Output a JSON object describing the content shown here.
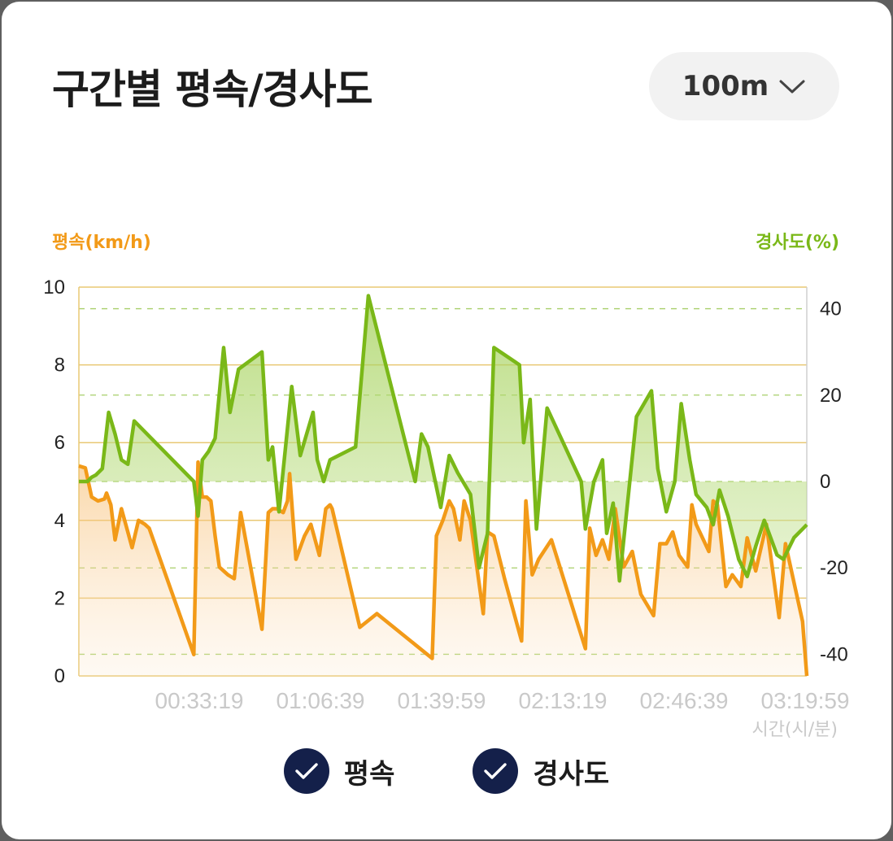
{
  "header": {
    "title": "구간별 평속/경사도"
  },
  "interval_select": {
    "value": "100m",
    "icon": "chevron-down-icon"
  },
  "colors": {
    "speed": "#f29a18",
    "gradient": "#7ab818",
    "grid": "#e8c874",
    "tick_text": "#222222",
    "x_tick_text": "#c9c9c9",
    "legend_check": "#14204a"
  },
  "legend": {
    "speed_label": "평속",
    "gradient_label": "경사도",
    "speed_checked": true,
    "gradient_checked": true
  },
  "chart_data": {
    "type": "line",
    "title": "구간별 평속/경사도",
    "xlabel": "시간(시/분)",
    "ylabel": "평속(km/h)",
    "y2label": "경사도(%)",
    "ylim": [
      0,
      10
    ],
    "y2lim": [
      -45,
      45
    ],
    "yticks": [
      "0",
      "2",
      "4",
      "6",
      "8",
      "10"
    ],
    "y2ticks": [
      "-40",
      "-20",
      "0",
      "20",
      "40"
    ],
    "xticks": [
      "00:33:19",
      "01:06:39",
      "01:39:59",
      "02:13:19",
      "02:46:39",
      "03:19:59"
    ],
    "grid": true,
    "series": [
      {
        "name": "평속",
        "axis": "left",
        "values": [
          [
            0,
            5.4
          ],
          [
            1.5,
            5.35
          ],
          [
            3,
            4.6
          ],
          [
            4.5,
            4.5
          ],
          [
            6,
            4.55
          ],
          [
            6.5,
            4.7
          ],
          [
            7.5,
            4.4
          ],
          [
            8.5,
            3.5
          ],
          [
            10,
            4.3
          ],
          [
            11.5,
            3.7
          ],
          [
            12.5,
            3.3
          ],
          [
            14,
            4
          ],
          [
            15.5,
            3.9
          ],
          [
            16.5,
            3.8
          ],
          [
            27,
            0.55
          ],
          [
            28,
            5.5
          ],
          [
            29,
            4.6
          ],
          [
            30,
            4.6
          ],
          [
            31,
            4.5
          ],
          [
            32,
            3.6
          ],
          [
            33,
            2.8
          ],
          [
            35,
            2.6
          ],
          [
            36.5,
            2.5
          ],
          [
            38,
            4.2
          ],
          [
            43,
            1.2
          ],
          [
            44.5,
            4.2
          ],
          [
            45.5,
            4.3
          ],
          [
            46.5,
            4.3
          ],
          [
            48,
            4.2
          ],
          [
            49,
            4.5
          ],
          [
            49.5,
            5.2
          ],
          [
            51,
            3
          ],
          [
            53,
            3.6
          ],
          [
            54.5,
            3.9
          ],
          [
            56.5,
            3.1
          ],
          [
            58,
            4.3
          ],
          [
            59,
            4.4
          ],
          [
            59.5,
            4.3
          ],
          [
            66,
            1.25
          ],
          [
            70,
            1.6
          ],
          [
            83,
            0.45
          ],
          [
            84,
            3.6
          ],
          [
            85.5,
            4
          ],
          [
            87,
            4.5
          ],
          [
            88,
            4.3
          ],
          [
            89.5,
            3.5
          ],
          [
            90.5,
            4.5
          ],
          [
            92,
            4
          ],
          [
            95,
            1.6
          ],
          [
            96,
            3.7
          ],
          [
            97.5,
            3.6
          ],
          [
            100,
            2.5
          ],
          [
            104,
            0.9
          ],
          [
            105,
            4.5
          ],
          [
            106.5,
            2.6
          ],
          [
            108,
            3
          ],
          [
            111,
            3.5
          ],
          [
            119,
            0.7
          ],
          [
            120,
            3.8
          ],
          [
            121.5,
            3.1
          ],
          [
            123,
            3.5
          ],
          [
            124.5,
            3
          ],
          [
            126,
            4.3
          ],
          [
            128,
            2.8
          ],
          [
            130,
            3.2
          ],
          [
            132,
            2.1
          ],
          [
            135,
            1.55
          ],
          [
            136.5,
            3.4
          ],
          [
            138,
            3.4
          ],
          [
            139.5,
            3.7
          ],
          [
            141,
            3.1
          ],
          [
            143,
            2.8
          ],
          [
            144,
            4.4
          ],
          [
            145,
            3.9
          ],
          [
            148,
            3.2
          ],
          [
            149,
            4.5
          ],
          [
            150,
            4.4
          ],
          [
            152,
            2.3
          ],
          [
            153.5,
            2.6
          ],
          [
            155.5,
            2.3
          ],
          [
            157,
            3.55
          ],
          [
            159,
            2.7
          ],
          [
            161.5,
            3.9
          ],
          [
            164.5,
            1.5
          ],
          [
            166,
            3.4
          ],
          [
            170,
            1.4
          ],
          [
            171,
            0
          ]
        ]
      },
      {
        "name": "경사도",
        "axis": "right",
        "values": [
          [
            0,
            0
          ],
          [
            2,
            0
          ],
          [
            3,
            1
          ],
          [
            4,
            1.5
          ],
          [
            5.5,
            3
          ],
          [
            7,
            16
          ],
          [
            8.5,
            11
          ],
          [
            10,
            5
          ],
          [
            11.5,
            4
          ],
          [
            13,
            14
          ],
          [
            27,
            0
          ],
          [
            28,
            -8
          ],
          [
            29,
            5
          ],
          [
            30.5,
            7
          ],
          [
            32,
            10
          ],
          [
            34,
            31
          ],
          [
            35.5,
            16
          ],
          [
            37.5,
            26
          ],
          [
            43,
            30
          ],
          [
            44.5,
            5
          ],
          [
            45.5,
            8
          ],
          [
            47,
            -7
          ],
          [
            50,
            22
          ],
          [
            52,
            6
          ],
          [
            55,
            16
          ],
          [
            56,
            5
          ],
          [
            57.5,
            0
          ],
          [
            59,
            5
          ],
          [
            65,
            8
          ],
          [
            68,
            43
          ],
          [
            79,
            0
          ],
          [
            80.5,
            11
          ],
          [
            82,
            8
          ],
          [
            85,
            -6
          ],
          [
            87,
            6
          ],
          [
            89,
            2
          ],
          [
            92,
            -3
          ],
          [
            94,
            -20
          ],
          [
            96,
            -12
          ],
          [
            97.5,
            31
          ],
          [
            103.5,
            27
          ],
          [
            104.5,
            9
          ],
          [
            106,
            19
          ],
          [
            107.5,
            -11
          ],
          [
            110,
            17
          ],
          [
            118,
            0
          ],
          [
            119,
            -11
          ],
          [
            121,
            0
          ],
          [
            123,
            5
          ],
          [
            124,
            -12
          ],
          [
            125.5,
            -5
          ],
          [
            127,
            -23
          ],
          [
            131,
            15
          ],
          [
            134.5,
            21
          ],
          [
            136,
            3
          ],
          [
            138,
            -7
          ],
          [
            140,
            0
          ],
          [
            141.5,
            18
          ],
          [
            143.5,
            5
          ],
          [
            145,
            -3
          ],
          [
            147.5,
            -6
          ],
          [
            149,
            -10
          ],
          [
            150.5,
            -2
          ],
          [
            152.5,
            -8
          ],
          [
            155,
            -18
          ],
          [
            157,
            -22
          ],
          [
            159,
            -15
          ],
          [
            161,
            -9
          ],
          [
            164,
            -17
          ],
          [
            165.5,
            -18
          ],
          [
            168,
            -13
          ],
          [
            170,
            -11
          ],
          [
            171,
            -10
          ]
        ]
      }
    ]
  }
}
